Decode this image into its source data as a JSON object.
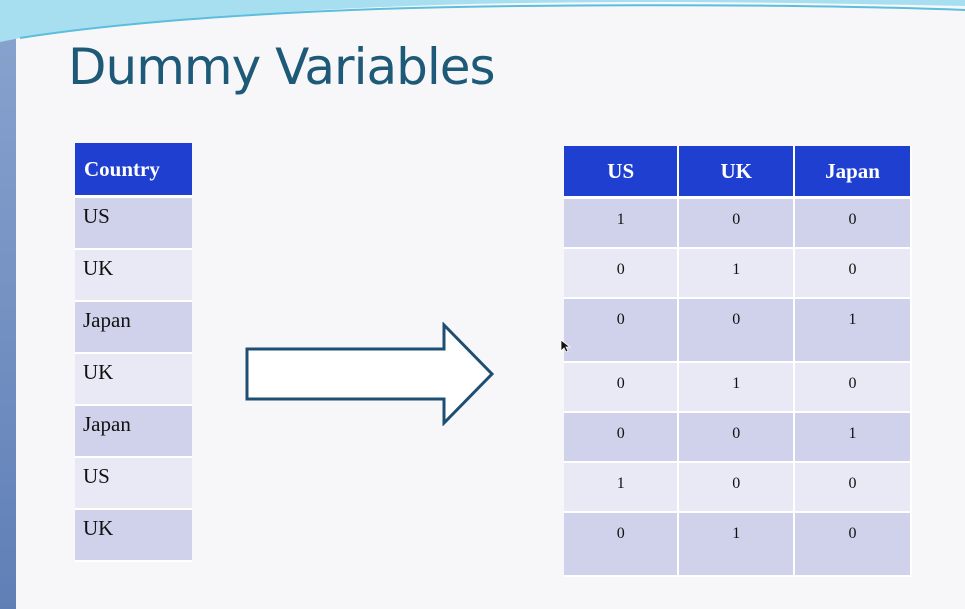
{
  "slide": {
    "title": "Dummy Variables"
  },
  "country_table": {
    "header": "Country",
    "rows": [
      "US",
      "UK",
      "Japan",
      "UK",
      "Japan",
      "US",
      "UK"
    ]
  },
  "dummy_table": {
    "headers": [
      "US",
      "UK",
      "Japan"
    ],
    "rows": [
      [
        "1",
        "0",
        "0"
      ],
      [
        "0",
        "1",
        "0"
      ],
      [
        "0",
        "0",
        "1"
      ],
      [
        "0",
        "1",
        "0"
      ],
      [
        "0",
        "0",
        "1"
      ],
      [
        "1",
        "0",
        "0"
      ],
      [
        "0",
        "1",
        "0"
      ]
    ]
  },
  "colors": {
    "header_bg": "#1f3fd0",
    "row_dark": "#cfd2ea",
    "row_light": "#e8e9f4",
    "title": "#1e5a78"
  },
  "icons": {
    "arrow": "right-arrow-outline",
    "cursor": "mouse-pointer"
  }
}
